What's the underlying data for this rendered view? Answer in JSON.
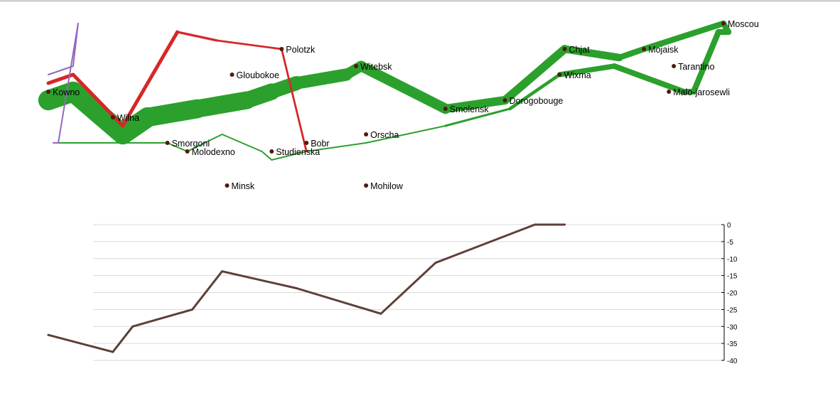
{
  "chart_data": [
    {
      "type": "flow-map",
      "cities": [
        {
          "name": "Kowno",
          "lon": 24.0,
          "lat": 55.0
        },
        {
          "name": "Wilna",
          "lon": 25.3,
          "lat": 54.7
        },
        {
          "name": "Smorgoni",
          "lon": 26.4,
          "lat": 54.4
        },
        {
          "name": "Molodexno",
          "lon": 26.8,
          "lat": 54.3
        },
        {
          "name": "Gloubokoe",
          "lon": 27.7,
          "lat": 55.2
        },
        {
          "name": "Minsk",
          "lon": 27.6,
          "lat": 53.9
        },
        {
          "name": "Studienska",
          "lon": 28.5,
          "lat": 54.3
        },
        {
          "name": "Polotzk",
          "lon": 28.7,
          "lat": 55.5
        },
        {
          "name": "Bobr",
          "lon": 29.2,
          "lat": 54.4
        },
        {
          "name": "Witebsk",
          "lon": 30.2,
          "lat": 55.3
        },
        {
          "name": "Orscha",
          "lon": 30.4,
          "lat": 54.5
        },
        {
          "name": "Mohilow",
          "lon": 30.4,
          "lat": 53.9
        },
        {
          "name": "Smolensk",
          "lon": 32.0,
          "lat": 54.8
        },
        {
          "name": "Dorogobouge",
          "lon": 33.2,
          "lat": 54.9
        },
        {
          "name": "Wixma",
          "lon": 34.3,
          "lat": 55.2
        },
        {
          "name": "Chjat",
          "lon": 34.4,
          "lat": 55.5
        },
        {
          "name": "Mojaisk",
          "lon": 36.0,
          "lat": 55.5
        },
        {
          "name": "Moscou",
          "lon": 37.6,
          "lat": 55.8
        },
        {
          "name": "Tarantino",
          "lon": 36.6,
          "lat": 55.3
        },
        {
          "name": "Malo-jarosewli",
          "lon": 36.5,
          "lat": 55.0
        }
      ],
      "groups": [
        {
          "group": 1,
          "color": "#2ca02c",
          "path": [
            {
              "lon": 24.0,
              "lat": 54.9,
              "survivors": 340000,
              "direction": "advance"
            },
            {
              "lon": 24.5,
              "lat": 55.0,
              "survivors": 340000,
              "direction": "advance"
            },
            {
              "lon": 25.5,
              "lat": 54.5,
              "survivors": 340000,
              "direction": "advance"
            },
            {
              "lon": 26.0,
              "lat": 54.7,
              "survivors": 320000,
              "direction": "advance"
            },
            {
              "lon": 27.0,
              "lat": 54.8,
              "survivors": 300000,
              "direction": "advance"
            },
            {
              "lon": 28.0,
              "lat": 54.9,
              "survivors": 280000,
              "direction": "advance"
            },
            {
              "lon": 28.5,
              "lat": 55.0,
              "survivors": 240000,
              "direction": "advance"
            },
            {
              "lon": 29.0,
              "lat": 55.1,
              "survivors": 210000,
              "direction": "advance"
            },
            {
              "lon": 30.0,
              "lat": 55.2,
              "survivors": 180000,
              "direction": "advance"
            },
            {
              "lon": 30.3,
              "lat": 55.3,
              "survivors": 175000,
              "direction": "advance"
            },
            {
              "lon": 32.0,
              "lat": 54.8,
              "survivors": 145000,
              "direction": "advance"
            },
            {
              "lon": 33.2,
              "lat": 54.9,
              "survivors": 140000,
              "direction": "advance"
            },
            {
              "lon": 34.4,
              "lat": 55.5,
              "survivors": 127100,
              "direction": "advance"
            },
            {
              "lon": 35.5,
              "lat": 55.4,
              "survivors": 100000,
              "direction": "advance"
            },
            {
              "lon": 36.0,
              "lat": 55.5,
              "survivors": 100000,
              "direction": "advance"
            },
            {
              "lon": 37.6,
              "lat": 55.8,
              "survivors": 100000,
              "direction": "advance"
            },
            {
              "lon": 37.7,
              "lat": 55.7,
              "survivors": 100000,
              "direction": "retreat"
            },
            {
              "lon": 37.5,
              "lat": 55.7,
              "survivors": 98000,
              "direction": "retreat"
            },
            {
              "lon": 37.0,
              "lat": 55.0,
              "survivors": 97000,
              "direction": "retreat"
            },
            {
              "lon": 36.8,
              "lat": 55.0,
              "survivors": 96000,
              "direction": "retreat"
            },
            {
              "lon": 35.4,
              "lat": 55.3,
              "survivors": 87000,
              "direction": "retreat"
            },
            {
              "lon": 34.3,
              "lat": 55.2,
              "survivors": 55000,
              "direction": "retreat"
            },
            {
              "lon": 33.3,
              "lat": 54.8,
              "survivors": 37000,
              "direction": "retreat"
            },
            {
              "lon": 32.0,
              "lat": 54.6,
              "survivors": 24000,
              "direction": "retreat"
            },
            {
              "lon": 30.4,
              "lat": 54.4,
              "survivors": 20000,
              "direction": "retreat"
            },
            {
              "lon": 29.2,
              "lat": 54.3,
              "survivors": 20000,
              "direction": "retreat"
            },
            {
              "lon": 28.5,
              "lat": 54.2,
              "survivors": 20000,
              "direction": "retreat"
            },
            {
              "lon": 28.3,
              "lat": 54.3,
              "survivors": 20000,
              "direction": "retreat"
            },
            {
              "lon": 27.5,
              "lat": 54.5,
              "survivors": 20000,
              "direction": "retreat"
            },
            {
              "lon": 26.8,
              "lat": 54.3,
              "survivors": 12000,
              "direction": "retreat"
            },
            {
              "lon": 26.4,
              "lat": 54.4,
              "survivors": 14000,
              "direction": "retreat"
            },
            {
              "lon": 24.6,
              "lat": 54.4,
              "survivors": 8000,
              "direction": "retreat"
            },
            {
              "lon": 24.4,
              "lat": 54.4,
              "survivors": 4000,
              "direction": "retreat"
            },
            {
              "lon": 24.2,
              "lat": 54.4,
              "survivors": 4000,
              "direction": "retreat"
            },
            {
              "lon": 24.1,
              "lat": 54.4,
              "survivors": 4000,
              "direction": "retreat"
            }
          ]
        },
        {
          "group": 2,
          "color": "#d62728",
          "path": [
            {
              "lon": 24.0,
              "lat": 55.1,
              "survivors": 60000,
              "direction": "advance"
            },
            {
              "lon": 24.5,
              "lat": 55.2,
              "survivors": 60000,
              "direction": "advance"
            },
            {
              "lon": 25.5,
              "lat": 54.6,
              "survivors": 60000,
              "direction": "advance"
            },
            {
              "lon": 26.6,
              "lat": 55.7,
              "survivors": 40000,
              "direction": "advance"
            },
            {
              "lon": 27.4,
              "lat": 55.6,
              "survivors": 33000,
              "direction": "advance"
            },
            {
              "lon": 28.7,
              "lat": 55.5,
              "survivors": 33000,
              "direction": "advance"
            },
            {
              "lon": 29.2,
              "lat": 54.3,
              "survivors": 30000,
              "direction": "retreat"
            }
          ]
        },
        {
          "group": 3,
          "color": "#9467bd",
          "path": [
            {
              "lon": 24.0,
              "lat": 55.2,
              "survivors": 22000,
              "direction": "advance"
            },
            {
              "lon": 24.5,
              "lat": 55.3,
              "survivors": 22000,
              "direction": "advance"
            },
            {
              "lon": 24.6,
              "lat": 55.8,
              "survivors": 6000,
              "direction": "advance"
            },
            {
              "lon": 24.2,
              "lat": 54.4,
              "survivors": 6000,
              "direction": "retreat"
            },
            {
              "lon": 24.1,
              "lat": 54.4,
              "survivors": 6000,
              "direction": "retreat"
            }
          ]
        }
      ]
    },
    {
      "type": "line",
      "color": "#5d4037",
      "points": [
        {
          "lon": 24.0,
          "temp": -32.5
        },
        {
          "lon": 25.3,
          "temp": -37.5
        },
        {
          "lon": 25.7,
          "temp": -30
        },
        {
          "lon": 26.9,
          "temp": -25
        },
        {
          "lon": 27.5,
          "temp": -13.75
        },
        {
          "lon": 29.0,
          "temp": -18.75
        },
        {
          "lon": 30.7,
          "temp": -26.25
        },
        {
          "lon": 31.8,
          "temp": -11.25
        },
        {
          "lon": 33.8,
          "temp": 0
        },
        {
          "lon": 34.4,
          "temp": 0
        }
      ],
      "ylim": [
        -40,
        0
      ],
      "yticks": [
        0,
        -5,
        -10,
        -15,
        -20,
        -25,
        -30,
        -35,
        -40
      ],
      "grid": true,
      "axis_position": "right"
    }
  ]
}
